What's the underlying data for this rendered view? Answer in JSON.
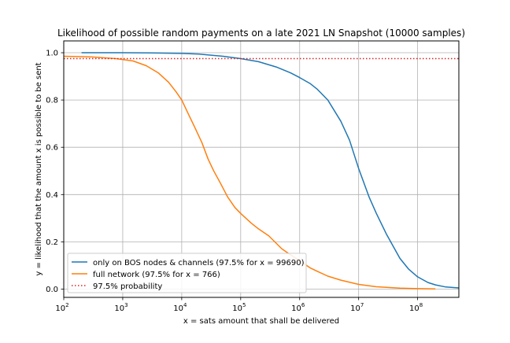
{
  "chart_data": {
    "type": "line",
    "title": "Likelihood of possible random payments on a late 2021 LN Snapshot (10000 samples)",
    "xlabel": "x = sats amount that shall be delivered",
    "ylabel": "y = likelihood that the amount x is possible to be sent",
    "x_scale": "log",
    "xlim": [
      100,
      500000000
    ],
    "ylim": [
      -0.035,
      1.05
    ],
    "grid": true,
    "legend_position": "lower-left",
    "x_ticks": [
      {
        "value": 100,
        "base": "10",
        "exp": "2"
      },
      {
        "value": 1000,
        "base": "10",
        "exp": "3"
      },
      {
        "value": 10000,
        "base": "10",
        "exp": "4"
      },
      {
        "value": 100000,
        "base": "10",
        "exp": "5"
      },
      {
        "value": 1000000,
        "base": "10",
        "exp": "6"
      },
      {
        "value": 10000000,
        "base": "10",
        "exp": "7"
      },
      {
        "value": 100000000,
        "base": "10",
        "exp": "8"
      }
    ],
    "y_ticks": [
      {
        "value": 0.0,
        "label": "0.0"
      },
      {
        "value": 0.2,
        "label": "0.2"
      },
      {
        "value": 0.4,
        "label": "0.4"
      },
      {
        "value": 0.6,
        "label": "0.6"
      },
      {
        "value": 0.8,
        "label": "0.8"
      },
      {
        "value": 1.0,
        "label": "1.0"
      }
    ],
    "series": [
      {
        "name": "only on BOS nodes & channels (97.5% for x = 99690)",
        "color": "#1f77b4",
        "style": "solid",
        "points": [
          [
            200,
            1.0
          ],
          [
            1000,
            1.0
          ],
          [
            3000,
            0.999
          ],
          [
            10000,
            0.997
          ],
          [
            20000,
            0.994
          ],
          [
            50000,
            0.985
          ],
          [
            100000,
            0.975
          ],
          [
            200000,
            0.962
          ],
          [
            400000,
            0.94
          ],
          [
            700000,
            0.915
          ],
          [
            1000000,
            0.895
          ],
          [
            1500000,
            0.87
          ],
          [
            2000000,
            0.845
          ],
          [
            3000000,
            0.8
          ],
          [
            5000000,
            0.71
          ],
          [
            7000000,
            0.63
          ],
          [
            10000000,
            0.51
          ],
          [
            15000000,
            0.39
          ],
          [
            20000000,
            0.32
          ],
          [
            30000000,
            0.23
          ],
          [
            50000000,
            0.13
          ],
          [
            70000000,
            0.085
          ],
          [
            100000000,
            0.052
          ],
          [
            150000000,
            0.028
          ],
          [
            200000000,
            0.018
          ],
          [
            300000000,
            0.009
          ],
          [
            500000000,
            0.005
          ]
        ]
      },
      {
        "name": "full network (97.5% for x = 766)",
        "color": "#ff7f0e",
        "style": "solid",
        "points": [
          [
            100,
            0.985
          ],
          [
            300,
            0.982
          ],
          [
            766,
            0.975
          ],
          [
            1500,
            0.965
          ],
          [
            2500,
            0.945
          ],
          [
            4000,
            0.915
          ],
          [
            6000,
            0.875
          ],
          [
            8000,
            0.835
          ],
          [
            10000,
            0.8
          ],
          [
            13000,
            0.74
          ],
          [
            17000,
            0.68
          ],
          [
            22000,
            0.62
          ],
          [
            28000,
            0.55
          ],
          [
            35000,
            0.5
          ],
          [
            45000,
            0.45
          ],
          [
            60000,
            0.39
          ],
          [
            80000,
            0.345
          ],
          [
            100000,
            0.32
          ],
          [
            150000,
            0.28
          ],
          [
            200000,
            0.255
          ],
          [
            300000,
            0.225
          ],
          [
            500000,
            0.17
          ],
          [
            700000,
            0.145
          ],
          [
            1000000,
            0.12
          ],
          [
            1500000,
            0.09
          ],
          [
            2000000,
            0.075
          ],
          [
            3000000,
            0.055
          ],
          [
            5000000,
            0.038
          ],
          [
            10000000,
            0.02
          ],
          [
            20000000,
            0.01
          ],
          [
            50000000,
            0.004
          ],
          [
            100000000,
            0.002
          ],
          [
            200000000,
            0.001
          ]
        ]
      },
      {
        "name": "97.5% probability",
        "color": "#d62728",
        "style": "dotted",
        "points": [
          [
            100,
            0.975
          ],
          [
            500000000,
            0.975
          ]
        ]
      }
    ]
  }
}
